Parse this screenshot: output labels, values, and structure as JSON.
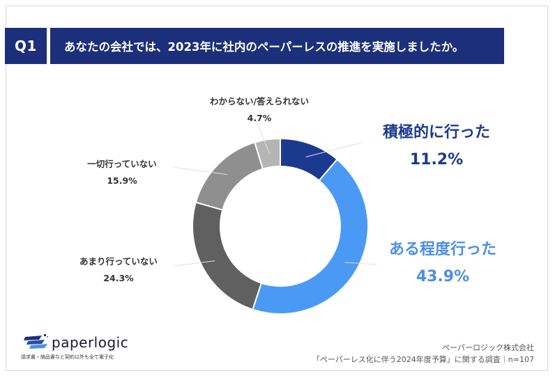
{
  "header": {
    "badge": "Q1",
    "question": "あなたの会社では、2023年に社内のペーパーレスの推進を実施しましたか。"
  },
  "chart_data": {
    "type": "donut",
    "categories": [
      "積極的に行った",
      "ある程度行った",
      "あまり行っていない",
      "一切行っていない",
      "わからない/答えられない"
    ],
    "values": [
      11.2,
      43.9,
      24.3,
      15.9,
      4.7
    ],
    "labels": [
      "11.2%",
      "43.9%",
      "24.3%",
      "15.9%",
      "4.7%"
    ],
    "colors": [
      "#1b3a8f",
      "#4a9af5",
      "#606060",
      "#8f8f8f",
      "#b5b5b5"
    ]
  },
  "logo": {
    "name": "paperlogic",
    "tagline": "請求書・納品書など契約以外も全て電子化"
  },
  "source": {
    "company": "ペーパーロジック株式会社",
    "survey": "「ペーパーレス化に伴う2024年度予算」に関する調査｜n=107"
  }
}
